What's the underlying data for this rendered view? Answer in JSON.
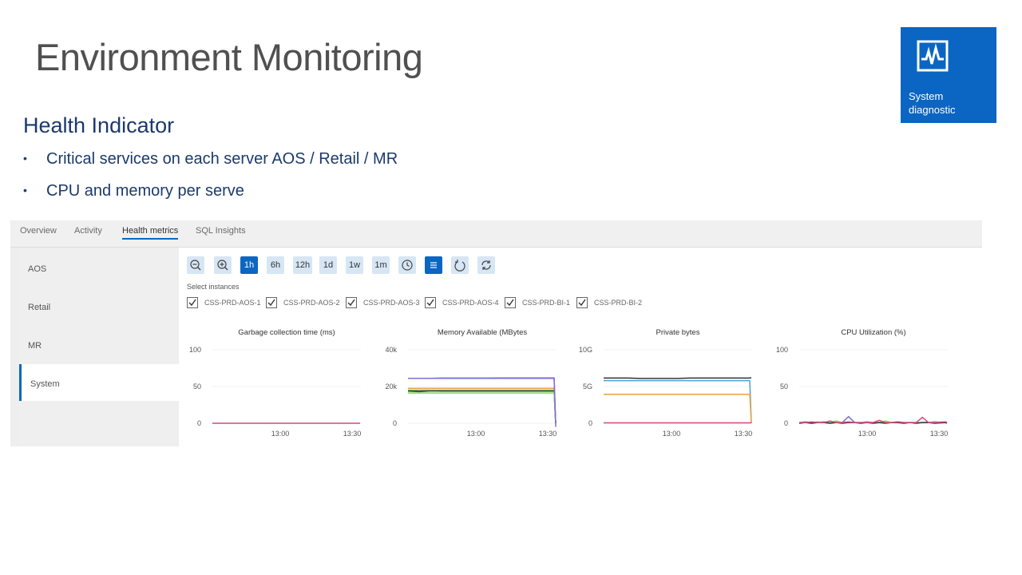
{
  "slide": {
    "title": "Environment Monitoring",
    "subtitle": "Health Indicator",
    "bullets": [
      "Critical services on each server AOS / Retail / MR",
      "CPU and memory per serve"
    ],
    "bullet_glyph": "•"
  },
  "tile": {
    "label_line1": "System",
    "label_line2": "diagnostic",
    "icon": "heartbeat-monitor-icon",
    "color": "#0a66c2"
  },
  "tabs": [
    "Overview",
    "Activity",
    "Health metrics",
    "SQL Insights"
  ],
  "active_tab": "Health metrics",
  "sidebar": [
    "AOS",
    "Retail",
    "MR",
    "System"
  ],
  "active_sidebar": "System",
  "toolbar": {
    "zoom_out": "zoom-out-icon",
    "zoom_in": "zoom-in-icon",
    "ranges": [
      "1h",
      "6h",
      "12h",
      "1d",
      "1w",
      "1m"
    ],
    "active_range": "1h",
    "clock": "clock-icon",
    "list": "list-icon",
    "reset": "reset-icon",
    "refresh": "refresh-icon"
  },
  "select_label": "Select instances",
  "instances": [
    "CSS-PRD-AOS-1",
    "CSS-PRD-AOS-2",
    "CSS-PRD-AOS-3",
    "CSS-PRD-AOS-4",
    "CSS-PRD-BI-1",
    "CSS-PRD-BI-2"
  ],
  "colors": {
    "accent": "#0a66c2",
    "title_gray": "#505050",
    "navy": "#1b3a6b"
  },
  "chart_data": [
    {
      "type": "line",
      "title": "Garbage collection time (ms)",
      "yticks": [
        "100",
        "50",
        "0"
      ],
      "xticks": [
        "13:00",
        "13:30"
      ],
      "ylim": [
        0,
        100
      ],
      "series": [
        {
          "color": "#d9457f",
          "values": [
            0,
            0,
            0,
            0,
            0,
            0,
            0,
            0,
            0,
            0,
            0,
            0
          ]
        }
      ]
    },
    {
      "type": "line",
      "title": "Memory Available (MBytes",
      "yticks": [
        "40k",
        "20k",
        "0"
      ],
      "xticks": [
        "13:00",
        "13:30"
      ],
      "ylim": [
        0,
        40000
      ],
      "series": [
        {
          "color": "#d9457f",
          "values": [
            24500,
            24500,
            24500,
            24600,
            24600,
            24600,
            24600,
            24600,
            24700,
            24700,
            24700,
            24700,
            24700,
            0
          ]
        },
        {
          "color": "#e8a33c",
          "values": [
            19000,
            19000,
            19000,
            19000,
            19000,
            19000,
            19000,
            19000,
            19000,
            19000,
            19000,
            19000,
            19000,
            0
          ]
        },
        {
          "color": "#333333",
          "values": [
            17500,
            17200,
            17600,
            17500,
            17500,
            17500,
            17500,
            17500,
            17500,
            17500,
            17500,
            17500,
            17500,
            0
          ]
        },
        {
          "color": "#6b8f6b",
          "values": [
            18000,
            18000,
            18000,
            18000,
            18000,
            18000,
            18000,
            18000,
            18000,
            18000,
            18000,
            18000,
            18000,
            0
          ]
        },
        {
          "color": "#7ed957",
          "values": [
            16500,
            16500,
            16500,
            16500,
            16500,
            16500,
            16500,
            16500,
            16500,
            16500,
            16500,
            16500,
            16500,
            0
          ]
        },
        {
          "color": "#7b6fd9",
          "values": [
            24500,
            24500,
            24500,
            24500,
            24500,
            24500,
            24500,
            24500,
            24500,
            24500,
            24500,
            24500,
            24500,
            -2000
          ]
        }
      ]
    },
    {
      "type": "line",
      "title": "Private bytes",
      "yticks": [
        "10G",
        "5G",
        "0"
      ],
      "xticks": [
        "13:00",
        "13:30"
      ],
      "ylim": [
        0,
        10
      ],
      "series": [
        {
          "color": "#333333",
          "values": [
            6.15,
            6.15,
            6.15,
            6.1,
            6.1,
            6.1,
            6.1,
            6.15,
            6.15,
            6.15,
            6.15,
            6.15,
            6.2
          ]
        },
        {
          "color": "#4aa3d9",
          "values": [
            5.8,
            5.8,
            5.8,
            5.8,
            5.8,
            5.8,
            5.8,
            5.8,
            5.8,
            5.8,
            5.8,
            5.8,
            0
          ]
        },
        {
          "color": "#e8a33c",
          "values": [
            3.95,
            3.95,
            3.95,
            3.95,
            3.95,
            3.95,
            3.95,
            3.95,
            3.95,
            3.95,
            3.95,
            3.95,
            0
          ]
        },
        {
          "color": "#d9457f",
          "values": [
            0.05,
            0.05,
            0.05,
            0.05,
            0.05,
            0.05,
            0.05,
            0.05,
            0.05,
            0.05,
            0.05,
            0.05,
            0.05
          ]
        }
      ]
    },
    {
      "type": "line",
      "title": "CPU Utilization (%)",
      "yticks": [
        "100",
        "50",
        "0"
      ],
      "xticks": [
        "13:00",
        "13:30"
      ],
      "ylim": [
        0,
        100
      ],
      "series": [
        {
          "color": "#7b6fd9",
          "values": [
            1,
            2,
            1,
            1,
            2,
            1,
            1,
            1,
            9,
            1,
            1,
            2,
            1,
            1,
            1,
            1,
            2,
            1,
            1,
            1,
            1,
            1,
            2,
            1,
            1
          ]
        },
        {
          "color": "#7ed957",
          "values": [
            1,
            1,
            1,
            2,
            1,
            1,
            3,
            1,
            1,
            1,
            1,
            1,
            1,
            1,
            3,
            1,
            1,
            1,
            1,
            1,
            1,
            1,
            1,
            2,
            1
          ]
        },
        {
          "color": "#333333",
          "values": [
            0,
            1,
            0,
            1,
            1,
            0,
            1,
            0,
            1,
            1,
            0,
            1,
            0,
            1,
            0,
            1,
            1,
            0,
            1,
            0,
            1,
            1,
            0,
            1,
            0
          ]
        },
        {
          "color": "#d9457f",
          "values": [
            1,
            1,
            2,
            1,
            1,
            3,
            1,
            1,
            2,
            1,
            1,
            1,
            1,
            4,
            1,
            1,
            2,
            1,
            1,
            1,
            8,
            1,
            1,
            2,
            1
          ]
        }
      ]
    }
  ]
}
